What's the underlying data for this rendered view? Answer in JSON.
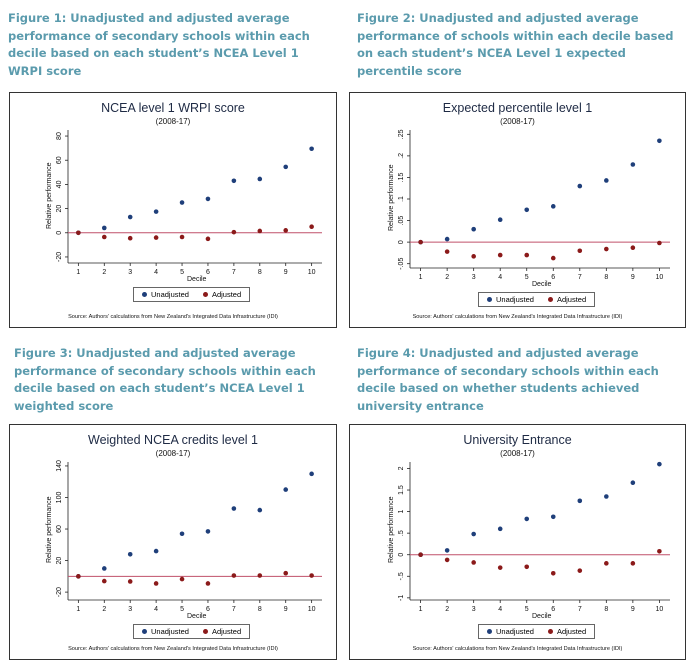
{
  "captions": [
    "Figure 1: Unadjusted and adjusted average performance of secondary schools within each decile based on each student’s NCEA Level 1 WRPI score",
    "Figure 2: Unadjusted and adjusted average performance of schools within each decile based on each student’s NCEA Level 1 expected percentile score",
    "Figure 3: Unadjusted and adjusted average performance of secondary schools within each decile based on each student’s NCEA Level 1 weighted score",
    "Figure 4: Unadjusted and adjusted average performance of secondary schools within each decile based on whether students achieved university entrance"
  ],
  "colors": {
    "unadjusted": "#1f3f7a",
    "adjusted": "#8b1a1a",
    "zero_line": "#c0506a",
    "caption": "#5b9bad"
  },
  "chart_data": [
    {
      "type": "scatter",
      "title": "NCEA level 1 WRPI score",
      "subtitle": "(2008-17)",
      "xlabel": "Decile",
      "ylabel": "Relative performance",
      "x": [
        1,
        2,
        3,
        4,
        5,
        6,
        7,
        8,
        9,
        10
      ],
      "ylim": [
        -25,
        85
      ],
      "yticks": [
        -20,
        0,
        20,
        40,
        60,
        80
      ],
      "ytick_labels": [
        "-20",
        "0",
        "20",
        "40",
        "60",
        "80"
      ],
      "series": [
        {
          "name": "Unadjusted",
          "values": [
            0,
            4,
            13,
            17.5,
            25,
            28,
            43,
            44.5,
            54.5,
            69.5
          ]
        },
        {
          "name": "Adjusted",
          "values": [
            0,
            -3.5,
            -4.5,
            -4,
            -3.5,
            -5,
            0.5,
            1.5,
            2,
            5
          ]
        }
      ],
      "legend": [
        "Unadjusted",
        "Adjusted"
      ],
      "legend_position": "bottom",
      "source": "Source: Authors' calculations from New Zealand's Integrated Data Infrastructure (IDI)"
    },
    {
      "type": "scatter",
      "title": "Expected percentile level 1",
      "subtitle": "(2008-17)",
      "xlabel": "Decile",
      "ylabel": "Relative performance",
      "x": [
        1,
        2,
        3,
        4,
        5,
        6,
        7,
        8,
        9,
        10
      ],
      "ylim": [
        -0.06,
        0.26
      ],
      "yticks": [
        -0.05,
        0,
        0.05,
        0.1,
        0.15,
        0.2,
        0.25
      ],
      "ytick_labels": [
        "-.05",
        "0",
        ".05",
        ".1",
        ".15",
        ".2",
        ".25"
      ],
      "series": [
        {
          "name": "Unadjusted",
          "values": [
            0,
            0.007,
            0.03,
            0.052,
            0.075,
            0.083,
            0.13,
            0.143,
            0.18,
            0.235
          ]
        },
        {
          "name": "Adjusted",
          "values": [
            0,
            -0.022,
            -0.033,
            -0.03,
            -0.03,
            -0.037,
            -0.02,
            -0.016,
            -0.013,
            -0.002
          ]
        }
      ],
      "legend": [
        "Unadjusted",
        "Adjusted"
      ],
      "legend_position": "bottom",
      "source": "Source: Authors' calculations from New Zealand's Integrated Data Infrastructure (IDI)"
    },
    {
      "type": "scatter",
      "title": "Weighted NCEA credits level 1",
      "subtitle": "(2008-17)",
      "xlabel": "Decile",
      "ylabel": "Relative performance",
      "x": [
        1,
        2,
        3,
        4,
        5,
        6,
        7,
        8,
        9,
        10
      ],
      "ylim": [
        -30,
        145
      ],
      "yticks": [
        -20,
        20,
        60,
        100,
        140
      ],
      "ytick_labels": [
        "-20",
        "20",
        "60",
        "100",
        "140"
      ],
      "series": [
        {
          "name": "Unadjusted",
          "values": [
            0,
            10,
            28,
            32,
            54,
            57,
            86,
            84,
            110,
            130
          ]
        },
        {
          "name": "Adjusted",
          "values": [
            0,
            -6,
            -6.5,
            -9,
            -3.5,
            -9,
            1,
            1,
            4,
            1
          ]
        }
      ],
      "legend": [
        "Unadjusted",
        "Adjusted"
      ],
      "legend_position": "bottom",
      "source": "Source: Authors' calculations from New Zealand's Integrated Data Infrastructure (IDI)"
    },
    {
      "type": "scatter",
      "title": "University Entrance",
      "subtitle": "(2008-17)",
      "xlabel": "Decile",
      "ylabel": "Relative performance",
      "x": [
        1,
        2,
        3,
        4,
        5,
        6,
        7,
        8,
        9,
        10
      ],
      "ylim": [
        -1.05,
        2.15
      ],
      "yticks": [
        -1,
        -0.5,
        0,
        0.5,
        1,
        1.5,
        2
      ],
      "ytick_labels": [
        "-1",
        "-.5",
        "0",
        ".5",
        "1",
        "1.5",
        "2"
      ],
      "series": [
        {
          "name": "Unadjusted",
          "values": [
            0,
            0.1,
            0.48,
            0.6,
            0.83,
            0.88,
            1.25,
            1.35,
            1.67,
            2.1
          ]
        },
        {
          "name": "Adjusted",
          "values": [
            0,
            -0.12,
            -0.18,
            -0.3,
            -0.28,
            -0.43,
            -0.37,
            -0.2,
            -0.2,
            0.08
          ]
        }
      ],
      "legend": [
        "Unadjusted",
        "Adjusted"
      ],
      "legend_position": "bottom",
      "source": "Source: Authors' calculations from New Zealand's Integrated Data Infrastructure (IDI)"
    }
  ]
}
